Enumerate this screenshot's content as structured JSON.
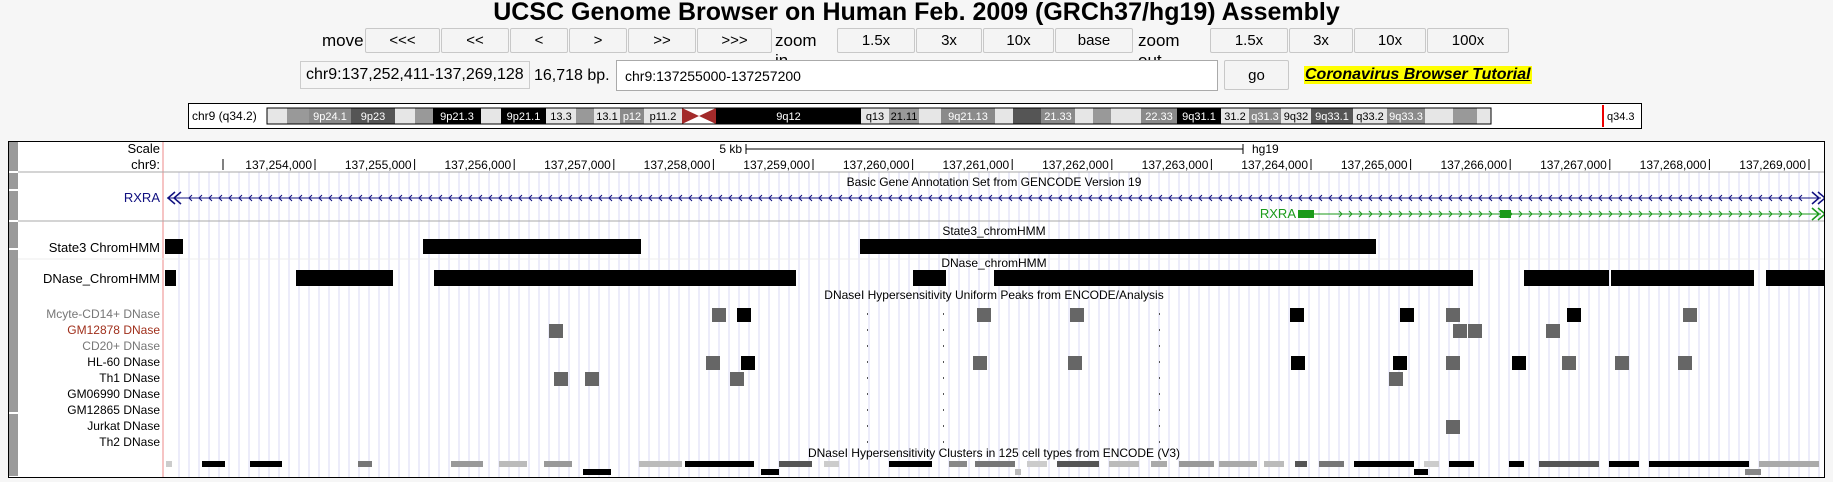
{
  "title": "UCSC Genome Browser on Human Feb. 2009 (GRCh37/hg19) Assembly",
  "nav": {
    "move_label": "move",
    "move_buttons": [
      "<<<",
      "<<",
      "<",
      ">",
      ">>",
      ">>>"
    ],
    "zoom_in_label": "zoom in",
    "zoom_in_buttons": [
      "1.5x",
      "3x",
      "10x",
      "base"
    ],
    "zoom_out_label": "zoom out",
    "zoom_out_buttons": [
      "1.5x",
      "3x",
      "10x",
      "100x"
    ]
  },
  "position": {
    "display": "chr9:137,252,411-137,269,128",
    "size": "16,718 bp.",
    "search_value": "chr9:137255000-137257200",
    "go_label": "go",
    "tutorial_link": "Coronavirus Browser Tutorial"
  },
  "ideogram": {
    "chrom_label": "chr9 (q34.2)",
    "end_label": "q34.3",
    "bands": [
      {
        "name": "",
        "shade": "light"
      },
      {
        "name": "",
        "shade": "mid"
      },
      {
        "name": "9p24.1",
        "shade": "gray"
      },
      {
        "name": "9p23",
        "shade": "dark"
      },
      {
        "name": "",
        "shade": "light"
      },
      {
        "name": "",
        "shade": "mid"
      },
      {
        "name": "9p21.3",
        "shade": "black"
      },
      {
        "name": "",
        "shade": "light"
      },
      {
        "name": "9p21.1",
        "shade": "black"
      },
      {
        "name": "13.3",
        "shade": "light"
      },
      {
        "name": "",
        "shade": "mid"
      },
      {
        "name": "13.1",
        "shade": "light"
      },
      {
        "name": "p12",
        "shade": "gray"
      },
      {
        "name": "p11.2",
        "shade": "light"
      },
      {
        "name": "",
        "shade": "centromere"
      },
      {
        "name": "9q12",
        "shade": "black"
      },
      {
        "name": "q13",
        "shade": "light"
      },
      {
        "name": "21.11",
        "shade": "mid"
      },
      {
        "name": "",
        "shade": "light"
      },
      {
        "name": "9q21.13",
        "shade": "gray"
      },
      {
        "name": "",
        "shade": "light"
      },
      {
        "name": "",
        "shade": "dark"
      },
      {
        "name": "21.33",
        "shade": "gray"
      },
      {
        "name": "",
        "shade": "light"
      },
      {
        "name": "",
        "shade": "mid"
      },
      {
        "name": "",
        "shade": "light"
      },
      {
        "name": "22.33",
        "shade": "gray"
      },
      {
        "name": "9q31.1",
        "shade": "black"
      },
      {
        "name": "31.2",
        "shade": "light"
      },
      {
        "name": "q31.3",
        "shade": "gray"
      },
      {
        "name": "9q32",
        "shade": "light"
      },
      {
        "name": "9q33.1",
        "shade": "dark"
      },
      {
        "name": "q33.2",
        "shade": "light"
      },
      {
        "name": "9q33.3",
        "shade": "gray"
      },
      {
        "name": "",
        "shade": "light"
      },
      {
        "name": "",
        "shade": "mid"
      },
      {
        "name": "",
        "shade": "light"
      }
    ]
  },
  "scale": {
    "label": "Scale",
    "bar_text": "5 kb",
    "assembly": "hg19",
    "chrom_label": "chr9:",
    "ticks": [
      "137,254,000",
      "137,255,000",
      "137,256,000",
      "137,257,000",
      "137,258,000",
      "137,259,000",
      "137,260,000",
      "137,261,000",
      "137,262,000",
      "137,263,000",
      "137,264,000",
      "137,265,000",
      "137,266,000",
      "137,267,000",
      "137,268,000",
      "137,269,000"
    ]
  },
  "tracks": {
    "gencode_title": "Basic Gene Annotation Set from GENCODE Version 19",
    "gene_label": "RXRA",
    "gene2_label": "RXRA",
    "state3_label": "State3 ChromHMM",
    "state3_title": "State3_chromHMM",
    "dnase_hmm_label": "DNase_ChromHMM",
    "dnase_hmm_title": "DNase_chromHMM",
    "uniform_title": "DNaseI Hypersensitivity Uniform Peaks from ENCODE/Analysis",
    "cell_lines": [
      {
        "name": "Mcyte-CD14+ DNase",
        "color": "#777777"
      },
      {
        "name": "GM12878 DNase",
        "color": "#a0301c"
      },
      {
        "name": "CD20+ DNase",
        "color": "#777777"
      },
      {
        "name": "HL-60 DNase",
        "color": "#000000"
      },
      {
        "name": "Th1 DNase",
        "color": "#000000"
      },
      {
        "name": "GM06990 DNase",
        "color": "#000000"
      },
      {
        "name": "GM12865 DNase",
        "color": "#000000"
      },
      {
        "name": "Jurkat DNase",
        "color": "#000000"
      },
      {
        "name": "Th2 DNase",
        "color": "#000000"
      }
    ],
    "clusters_title": "DNaseI Hypersensitivity Clusters in 125 cell types from ENCODE (V3)"
  },
  "colors": {
    "gene_blue": "#101080",
    "gene_green": "#1a9a1a",
    "highlight": "#ffff00"
  }
}
